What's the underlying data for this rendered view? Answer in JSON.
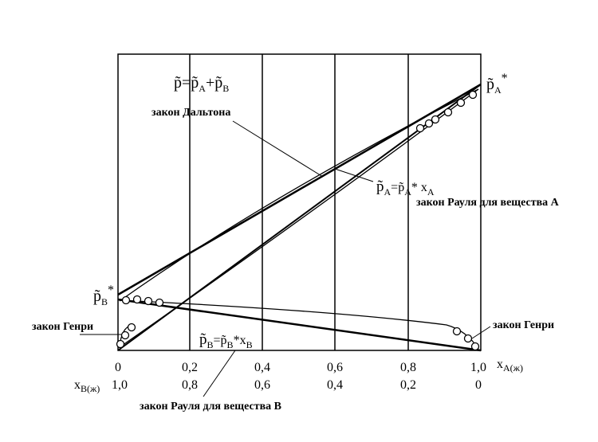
{
  "formulas": {
    "pA_star": [
      "p̃",
      "A",
      "*"
    ],
    "pB_star": [
      "p̃",
      "B",
      "*"
    ],
    "total": [
      "p̃=p̃",
      "A",
      "+p̃",
      "B"
    ],
    "raoult_A": [
      "p̃",
      "A",
      "=p̃",
      "A",
      "* x",
      "A"
    ],
    "raoult_B": [
      "p̃",
      "B",
      "=p̃",
      "B",
      "*x",
      "B"
    ]
  },
  "labels": {
    "dalton": "закон Дальтона",
    "raoult_A": "закон Рауля для вещества А",
    "raoult_B": "закон Рауля для вещества В",
    "henry_left": "закон Генри",
    "henry_right": "закон Генри"
  },
  "axis": {
    "xA_ticks": [
      "0",
      "0,2",
      "0,4",
      "0,6",
      "0,8",
      "1,0"
    ],
    "xA_label": [
      "x",
      "A(ж)"
    ],
    "xB_ticks": [
      "1,0",
      "0,8",
      "0,6",
      "0,4",
      "0,2",
      "0"
    ],
    "xB_label": [
      "x",
      "B(ж)"
    ]
  }
}
